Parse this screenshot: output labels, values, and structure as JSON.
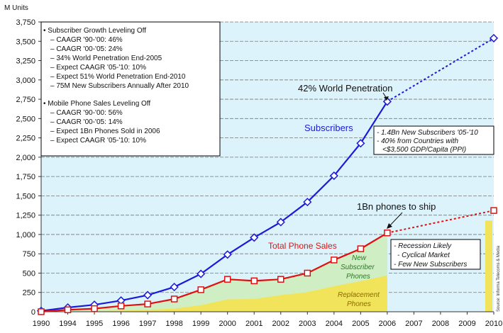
{
  "chart_data": {
    "type": "line",
    "y_unit_label": "M Units",
    "x": [
      "1990",
      "1994",
      "1995",
      "1996",
      "1997",
      "1998",
      "1999",
      "2000",
      "2001",
      "2002",
      "2003",
      "2004",
      "2005",
      "2006",
      "2007",
      "2008",
      "2009",
      "2010"
    ],
    "yticks": [
      "0",
      "250",
      "500",
      "750",
      "1,000",
      "1,250",
      "1,500",
      "1,750",
      "2,000",
      "2,250",
      "2,500",
      "2,750",
      "3,000",
      "3,250",
      "3,500",
      "3,750"
    ],
    "ylim": [
      0,
      3750
    ],
    "grid": true,
    "series": [
      {
        "name": "Subscribers",
        "color": "#1a1ad8",
        "marker": "diamond",
        "style": "solid until 2006, dotted to 2010",
        "points": [
          [
            "1990",
            11
          ],
          [
            "1994",
            55
          ],
          [
            "1995",
            90
          ],
          [
            "1996",
            145
          ],
          [
            "1997",
            215
          ],
          [
            "1998",
            320
          ],
          [
            "1999",
            490
          ],
          [
            "2000",
            740
          ],
          [
            "2001",
            960
          ],
          [
            "2002",
            1160
          ],
          [
            "2003",
            1420
          ],
          [
            "2004",
            1760
          ],
          [
            "2005",
            2180
          ],
          [
            "2006",
            2720
          ],
          [
            "2010",
            3540
          ]
        ]
      },
      {
        "name": "Total Phone Sales",
        "color": "#e01010",
        "marker": "square",
        "style": "solid until 2006, dotted to 2010",
        "points": [
          [
            "1990",
            1
          ],
          [
            "1994",
            25
          ],
          [
            "1995",
            40
          ],
          [
            "1996",
            75
          ],
          [
            "1997",
            100
          ],
          [
            "1998",
            165
          ],
          [
            "1999",
            285
          ],
          [
            "2000",
            420
          ],
          [
            "2001",
            400
          ],
          [
            "2002",
            420
          ],
          [
            "2003",
            500
          ],
          [
            "2004",
            670
          ],
          [
            "2005",
            815
          ],
          [
            "2006",
            1020
          ],
          [
            "2010",
            1310
          ]
        ]
      },
      {
        "name": "Replacement Phones",
        "color": "#f2e45a",
        "type": "area",
        "points": [
          [
            "1990",
            0
          ],
          [
            "1994",
            5
          ],
          [
            "1995",
            10
          ],
          [
            "1996",
            15
          ],
          [
            "1997",
            25
          ],
          [
            "1998",
            40
          ],
          [
            "1999",
            85
          ],
          [
            "2000",
            160
          ],
          [
            "2001",
            165
          ],
          [
            "2002",
            215
          ],
          [
            "2003",
            255
          ],
          [
            "2004",
            330
          ],
          [
            "2005",
            395
          ],
          [
            "2006",
            470
          ]
        ]
      },
      {
        "name": "New Subscriber Phones",
        "color": "#cfeec4",
        "type": "area"
      }
    ],
    "bar_2010": {
      "value": 1180,
      "color": "#f2e45a"
    }
  },
  "legend_box": {
    "head1": "• Subscriber Growth Leveling Off",
    "items1": [
      "– CAAGR '90-'00: 46%",
      "– CAAGR '00-'05: 24%",
      "– 34% World Penetration End-2005",
      "– Expect CAAGR '05-'10: 10%",
      "– Expect 51% World Penetration End-2010",
      "– 75M New Subscribers Annually After 2010"
    ],
    "head2": "• Mobile Phone Sales Leveling Off",
    "items2": [
      "– CAAGR '90-'00: 56%",
      "– CAAGR '00-'05: 14%",
      "– Expect 1Bn Phones Sold in 2006",
      "– Expect CAAGR '05-'10: 10%"
    ]
  },
  "annotations": {
    "world_penetration": "42% World Penetration",
    "subscribers_label": "Subscribers",
    "phones_to_ship": "1Bn phones to ship",
    "total_phone_sales": "Total Phone Sales",
    "new_subscriber_phones": [
      "New",
      "Subscriber",
      "Phones"
    ],
    "replacement_phones": [
      "Replacement",
      "Phones"
    ],
    "note_2010": [
      "- 1.4Bn New Subscribers '05-'10",
      "- 40% from Countries with",
      "<$3,500 GDP/Capita (PPI)"
    ],
    "note_outlook": [
      "- Recession Likely",
      "- Cyclical Market",
      "- Few New Subscribers"
    ],
    "credit": "Source: Informa Telecoms & Media"
  },
  "colors": {
    "plot_background": "#dcf3fb",
    "grid": "#777777",
    "subscribers": "#1a1ad8",
    "phone_sales": "#e01010",
    "new_subscriber_area": "#cfeec4",
    "replacement_area": "#f2e45a",
    "area_text_green": "#2c7a26",
    "area_text_yellow": "#8a6a00"
  }
}
